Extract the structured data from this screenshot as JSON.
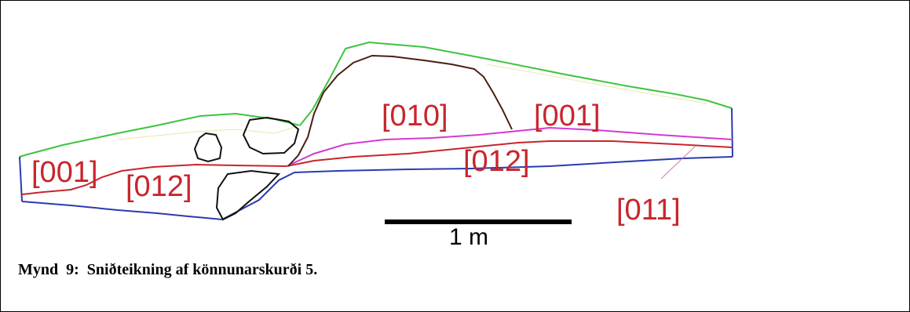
{
  "figure": {
    "caption": "Mynd  9:  Sniðteikning af könnunarskurði 5."
  },
  "section_drawing": {
    "layer_labels": {
      "l001_left": "[001]",
      "l012_left": "[012]",
      "l010": "[010]",
      "l001_right": "[001]",
      "l012_right": "[012]",
      "l011": "[011]"
    },
    "scale_bar": {
      "label": "1 m"
    }
  },
  "colors": {
    "surface_line": "#3ec43e",
    "base_line": "#2a3bb0",
    "layer_boundary_red": "#c8252c",
    "layer_boundary_magenta": "#d43ad4",
    "feature_outline": "#4a1f14",
    "stone_outline": "#111111",
    "label_text": "#c8252c"
  }
}
